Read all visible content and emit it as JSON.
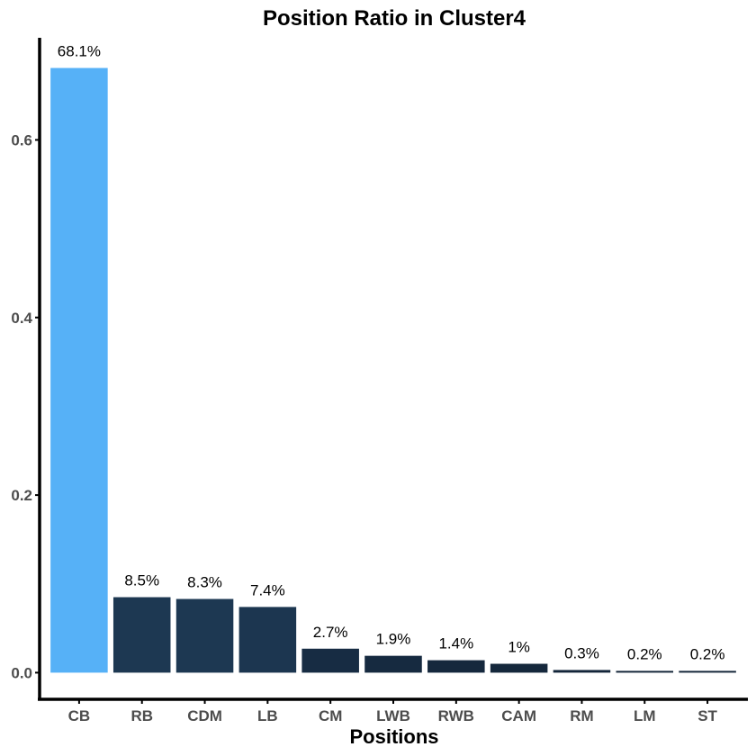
{
  "chart_data": {
    "type": "bar",
    "title": "Position Ratio in Cluster4",
    "xlabel": "Positions",
    "ylabel": "",
    "categories": [
      "CB",
      "RB",
      "CDM",
      "LB",
      "CM",
      "LWB",
      "RWB",
      "CAM",
      "RM",
      "LM",
      "ST"
    ],
    "values": [
      0.681,
      0.085,
      0.083,
      0.074,
      0.027,
      0.019,
      0.014,
      0.01,
      0.003,
      0.002,
      0.002
    ],
    "data_labels": [
      "68.1%",
      "8.5%",
      "8.3%",
      "7.4%",
      "2.7%",
      "1.9%",
      "1.4%",
      "1%",
      "0.3%",
      "0.2%",
      "0.2%"
    ],
    "yticks": [
      0.0,
      0.2,
      0.4,
      0.6
    ],
    "ytick_labels": [
      "0.0",
      "0.2",
      "0.4",
      "0.6"
    ],
    "ylim": [
      -0.03,
      0.715
    ],
    "grid": false,
    "legend": "none",
    "colors": {
      "bars": [
        "#56b1f7",
        "#1d3852",
        "#1d3852",
        "#1c3650",
        "#172c43",
        "#162a40",
        "#15283d",
        "#15283c",
        "#132539",
        "#132538",
        "#132538"
      ],
      "axis": "#000000",
      "tick_label": "#4d4d4d"
    }
  }
}
